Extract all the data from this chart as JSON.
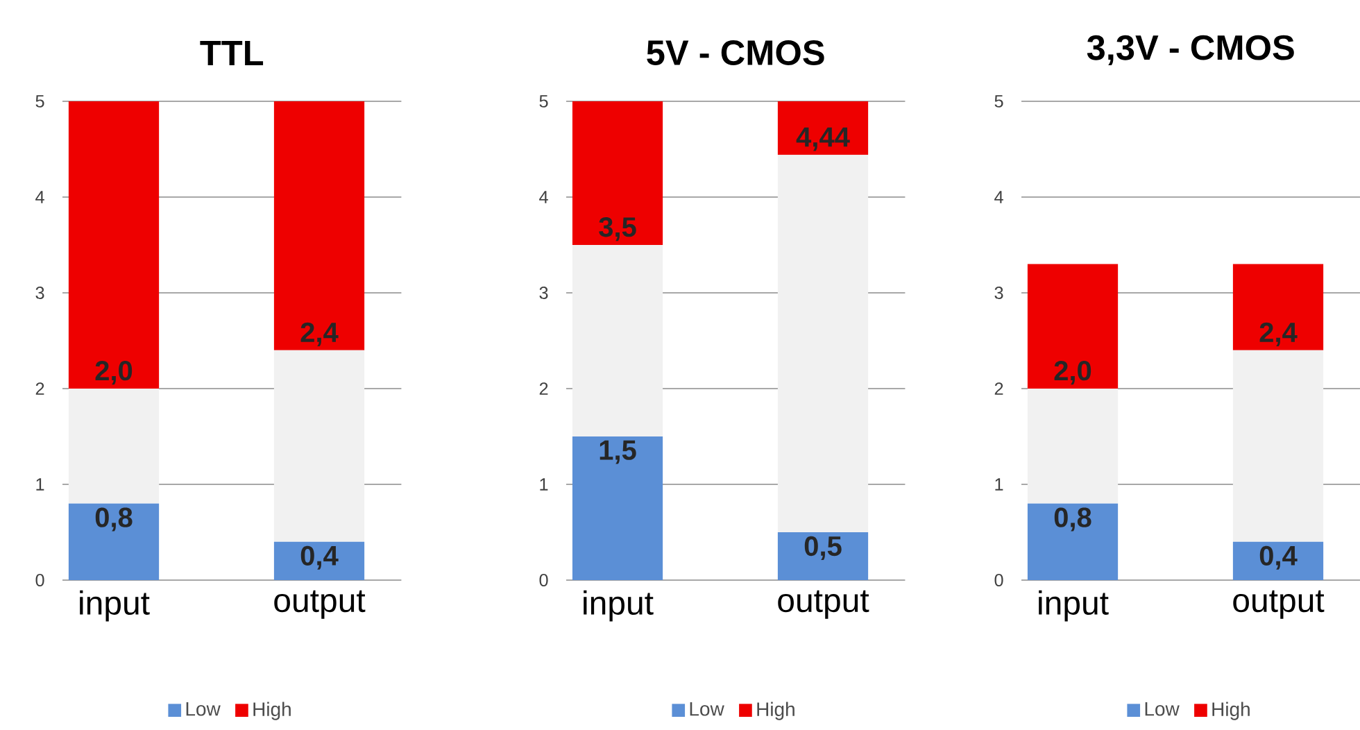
{
  "chart_data": [
    {
      "type": "bar",
      "title": "TTL",
      "stacked": true,
      "categories": [
        "input",
        "output"
      ],
      "ylim": [
        0,
        5
      ],
      "yticks": [
        0,
        1,
        2,
        3,
        4,
        5
      ],
      "grid": "y",
      "legend": "bottom",
      "series": [
        {
          "name": "Low",
          "color": "#5b8fd6",
          "values": [
            0.8,
            0.4
          ],
          "value_labels": [
            "0,8",
            "0,4"
          ]
        },
        {
          "color": "#f1f1f1",
          "values": [
            1.2,
            2.0
          ]
        },
        {
          "name": "High",
          "color": "#ee0000",
          "values": [
            3.0,
            2.6
          ]
        }
      ],
      "annotations": [
        {
          "text": "2,0",
          "x": "input",
          "y": 2.0
        },
        {
          "text": "2,4",
          "x": "output",
          "y": 2.4
        }
      ]
    },
    {
      "type": "bar",
      "title": "5V - CMOS",
      "stacked": true,
      "categories": [
        "input",
        "output"
      ],
      "ylim": [
        0,
        5
      ],
      "yticks": [
        0,
        1,
        2,
        3,
        4,
        5
      ],
      "grid": "y",
      "legend": "bottom",
      "series": [
        {
          "name": "Low",
          "color": "#5b8fd6",
          "values": [
            1.5,
            0.5
          ],
          "value_labels": [
            "1,5",
            "0,5"
          ]
        },
        {
          "color": "#f1f1f1",
          "values": [
            2.0,
            3.94
          ]
        },
        {
          "name": "High",
          "color": "#ee0000",
          "values": [
            1.5,
            0.56
          ]
        }
      ],
      "annotations": [
        {
          "text": "3,5",
          "x": "input",
          "y": 3.5
        },
        {
          "text": "4,44",
          "x": "output",
          "y": 4.44
        }
      ]
    },
    {
      "type": "bar",
      "title": "3,3V - CMOS",
      "stacked": true,
      "categories": [
        "input",
        "output"
      ],
      "ylim": [
        0,
        5
      ],
      "yticks": [
        0,
        1,
        2,
        3,
        4,
        5
      ],
      "grid": "y",
      "legend": "bottom",
      "series": [
        {
          "name": "Low",
          "color": "#5b8fd6",
          "values": [
            0.8,
            0.4
          ],
          "value_labels": [
            "0,8",
            "0,4"
          ]
        },
        {
          "color": "#f1f1f1",
          "values": [
            1.2,
            2.0
          ]
        },
        {
          "name": "High",
          "color": "#ee0000",
          "values": [
            1.3,
            0.9
          ]
        }
      ],
      "annotations": [
        {
          "text": "2,0",
          "x": "input",
          "y": 2.0
        },
        {
          "text": "2,4",
          "x": "output",
          "y": 2.4
        }
      ]
    }
  ]
}
